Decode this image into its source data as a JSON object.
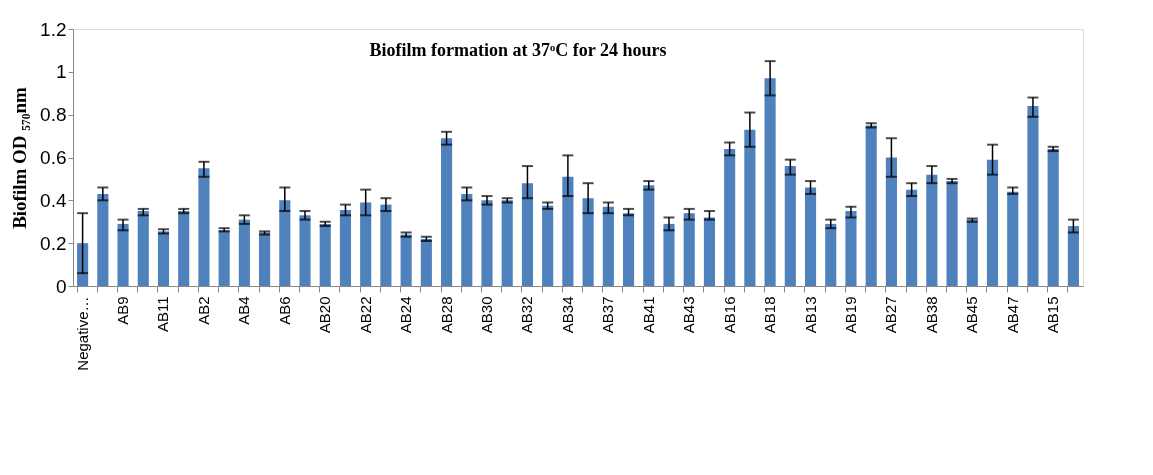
{
  "chart_data": {
    "type": "bar",
    "title": "Biofilm formation at 37ᵒC for 24 hours",
    "ylabel": "Biofilm OD ₅₇₀nm",
    "categories": [
      "Negative…",
      null,
      "AB9",
      null,
      "AB11",
      null,
      "AB2",
      null,
      "AB4",
      null,
      "AB6",
      null,
      "AB20",
      null,
      "AB22",
      null,
      "AB24",
      null,
      "AB28",
      null,
      "AB30",
      null,
      "AB32",
      null,
      "AB34",
      null,
      "AB37",
      null,
      "AB41",
      null,
      "AB43",
      null,
      "AB16",
      null,
      "AB18",
      null,
      "AB13",
      null,
      "AB19",
      null,
      "AB27",
      null,
      "AB38",
      null,
      "AB45",
      null,
      "AB47",
      null,
      "AB15",
      null
    ],
    "values": [
      0.2,
      0.43,
      0.29,
      0.35,
      0.255,
      0.35,
      0.55,
      0.26,
      0.31,
      0.25,
      0.4,
      0.33,
      0.29,
      0.355,
      0.39,
      0.38,
      0.24,
      0.22,
      0.69,
      0.43,
      0.4,
      0.4,
      0.48,
      0.375,
      0.51,
      0.41,
      0.37,
      0.34,
      0.47,
      0.29,
      0.34,
      0.32,
      0.64,
      0.73,
      0.97,
      0.56,
      0.46,
      0.29,
      0.35,
      0.75,
      0.6,
      0.45,
      0.52,
      0.49,
      0.31,
      0.59,
      0.44,
      0.84,
      0.64,
      0.28
    ],
    "errors": [
      [
        0.06,
        0.34
      ],
      [
        0.4,
        0.46
      ],
      [
        0.26,
        0.31
      ],
      [
        0.33,
        0.36
      ],
      [
        0.245,
        0.265
      ],
      [
        0.34,
        0.36
      ],
      [
        0.51,
        0.58
      ],
      [
        0.255,
        0.27
      ],
      [
        0.29,
        0.33
      ],
      [
        0.24,
        0.255
      ],
      [
        0.35,
        0.46
      ],
      [
        0.31,
        0.35
      ],
      [
        0.28,
        0.3
      ],
      [
        0.33,
        0.38
      ],
      [
        0.33,
        0.45
      ],
      [
        0.35,
        0.41
      ],
      [
        0.23,
        0.25
      ],
      [
        0.21,
        0.23
      ],
      [
        0.66,
        0.72
      ],
      [
        0.4,
        0.46
      ],
      [
        0.38,
        0.42
      ],
      [
        0.39,
        0.41
      ],
      [
        0.41,
        0.56
      ],
      [
        0.36,
        0.39
      ],
      [
        0.42,
        0.61
      ],
      [
        0.34,
        0.48
      ],
      [
        0.34,
        0.39
      ],
      [
        0.33,
        0.36
      ],
      [
        0.45,
        0.49
      ],
      [
        0.26,
        0.32
      ],
      [
        0.31,
        0.36
      ],
      [
        0.31,
        0.35
      ],
      [
        0.61,
        0.67
      ],
      [
        0.65,
        0.81
      ],
      [
        0.89,
        1.05
      ],
      [
        0.52,
        0.59
      ],
      [
        0.43,
        0.49
      ],
      [
        0.27,
        0.31
      ],
      [
        0.32,
        0.37
      ],
      [
        0.74,
        0.76
      ],
      [
        0.51,
        0.69
      ],
      [
        0.42,
        0.48
      ],
      [
        0.48,
        0.56
      ],
      [
        0.48,
        0.5
      ],
      [
        0.3,
        0.315
      ],
      [
        0.52,
        0.66
      ],
      [
        0.43,
        0.46
      ],
      [
        0.79,
        0.88
      ],
      [
        0.63,
        0.65
      ],
      [
        0.25,
        0.31
      ]
    ],
    "color": "#4f81bd",
    "ylim": [
      0,
      1.2
    ],
    "yticks": [
      0,
      0.2,
      0.4,
      0.6,
      0.8,
      1,
      1.2
    ],
    "grid": false
  }
}
